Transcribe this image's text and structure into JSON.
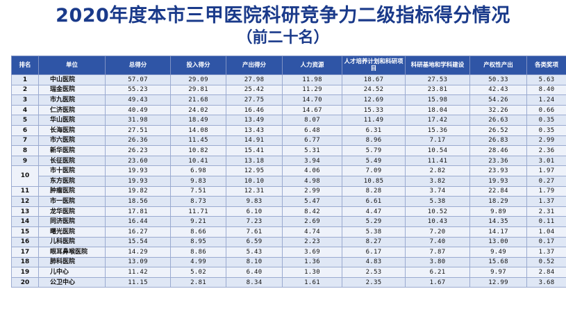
{
  "title": "2020年度本市三甲医院科研竞争力二级指标得分情况",
  "subtitle": "（前二十名）",
  "columns": [
    "排名",
    "单位",
    "总得分",
    "投入得分",
    "产出得分",
    "人力资源",
    "人才培养计划和科研项目",
    "科研基地和学科建设",
    "产权性产出",
    "各类奖项"
  ],
  "rows": [
    {
      "rank": "1",
      "unit": "中山医院",
      "vals": [
        "57.07",
        "29.09",
        "27.98",
        "11.98",
        "18.67",
        "27.53",
        "50.33",
        "5.63"
      ]
    },
    {
      "rank": "2",
      "unit": "瑞金医院",
      "vals": [
        "55.23",
        "29.81",
        "25.42",
        "11.29",
        "24.52",
        "23.81",
        "42.43",
        "8.40"
      ]
    },
    {
      "rank": "3",
      "unit": "市九医院",
      "vals": [
        "49.43",
        "21.68",
        "27.75",
        "14.70",
        "12.69",
        "15.98",
        "54.26",
        "1.24"
      ]
    },
    {
      "rank": "4",
      "unit": "仁济医院",
      "vals": [
        "40.49",
        "24.02",
        "16.46",
        "14.67",
        "15.33",
        "18.04",
        "32.26",
        "0.66"
      ]
    },
    {
      "rank": "5",
      "unit": "华山医院",
      "vals": [
        "31.98",
        "18.49",
        "13.49",
        "8.07",
        "11.49",
        "17.42",
        "26.63",
        "0.35"
      ]
    },
    {
      "rank": "6",
      "unit": "长海医院",
      "vals": [
        "27.51",
        "14.08",
        "13.43",
        "6.48",
        "6.31",
        "15.36",
        "26.52",
        "0.35"
      ]
    },
    {
      "rank": "7",
      "unit": "市六医院",
      "vals": [
        "26.36",
        "11.45",
        "14.91",
        "6.77",
        "8.96",
        "7.17",
        "26.83",
        "2.99"
      ]
    },
    {
      "rank": "8",
      "unit": "新华医院",
      "vals": [
        "26.23",
        "10.82",
        "15.41",
        "5.31",
        "5.79",
        "10.54",
        "28.46",
        "2.36"
      ]
    },
    {
      "rank": "9",
      "unit": "长征医院",
      "vals": [
        "23.60",
        "10.41",
        "13.18",
        "3.94",
        "5.49",
        "11.41",
        "23.36",
        "3.01"
      ]
    },
    {
      "rank": "10",
      "unit": "市十医院",
      "vals": [
        "19.93",
        "6.98",
        "12.95",
        "4.06",
        "7.09",
        "2.82",
        "23.93",
        "1.97"
      ]
    },
    {
      "rank": "",
      "unit": "东方医院",
      "vals": [
        "19.93",
        "9.83",
        "10.10",
        "4.98",
        "10.85",
        "3.82",
        "19.93",
        "0.27"
      ]
    },
    {
      "rank": "11",
      "unit": "肿瘤医院",
      "vals": [
        "19.82",
        "7.51",
        "12.31",
        "2.99",
        "8.28",
        "3.74",
        "22.84",
        "1.79"
      ]
    },
    {
      "rank": "12",
      "unit": "市一医院",
      "vals": [
        "18.56",
        "8.73",
        "9.83",
        "5.47",
        "6.61",
        "5.38",
        "18.29",
        "1.37"
      ]
    },
    {
      "rank": "13",
      "unit": "龙华医院",
      "vals": [
        "17.81",
        "11.71",
        "6.10",
        "8.42",
        "4.47",
        "10.52",
        "9.89",
        "2.31"
      ]
    },
    {
      "rank": "14",
      "unit": "同济医院",
      "vals": [
        "16.44",
        "9.21",
        "7.23",
        "2.69",
        "5.29",
        "10.43",
        "14.35",
        "0.11"
      ]
    },
    {
      "rank": "15",
      "unit": "曙光医院",
      "vals": [
        "16.27",
        "8.66",
        "7.61",
        "4.74",
        "5.38",
        "7.20",
        "14.17",
        "1.04"
      ]
    },
    {
      "rank": "16",
      "unit": "儿科医院",
      "vals": [
        "15.54",
        "8.95",
        "6.59",
        "2.23",
        "8.27",
        "7.40",
        "13.00",
        "0.17"
      ]
    },
    {
      "rank": "17",
      "unit": "眼耳鼻喉医院",
      "vals": [
        "14.29",
        "8.86",
        "5.43",
        "3.69",
        "6.17",
        "7.87",
        "9.49",
        "1.37"
      ]
    },
    {
      "rank": "18",
      "unit": "肺科医院",
      "vals": [
        "13.09",
        "4.99",
        "8.10",
        "1.36",
        "4.83",
        "3.80",
        "15.68",
        "0.52"
      ]
    },
    {
      "rank": "19",
      "unit": "儿中心",
      "vals": [
        "11.42",
        "5.02",
        "6.40",
        "1.30",
        "2.53",
        "6.21",
        "9.97",
        "2.84"
      ]
    },
    {
      "rank": "20",
      "unit": "公卫中心",
      "vals": [
        "11.15",
        "2.81",
        "8.34",
        "1.61",
        "2.35",
        "1.67",
        "12.99",
        "3.68"
      ]
    }
  ],
  "colors": {
    "header_bg": "#2f55a6",
    "title": "#1a3a8a",
    "row_a": "#dfe7f5",
    "row_b": "#eef2fa"
  }
}
